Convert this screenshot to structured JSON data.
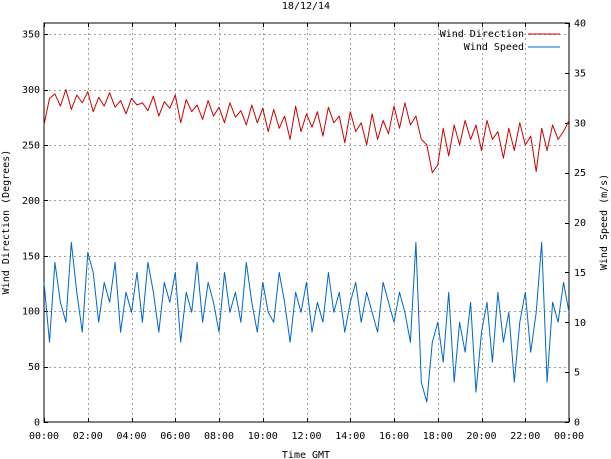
{
  "chart_data": {
    "type": "line",
    "title": "18/12/14",
    "xlabel": "Time GMT",
    "ylabel_left": "Wind Direction (Degrees)",
    "ylabel_right": "Wind Speed (m/s)",
    "x_tick_labels": [
      "00:00",
      "02:00",
      "04:00",
      "06:00",
      "08:00",
      "10:00",
      "12:00",
      "14:00",
      "16:00",
      "18:00",
      "20:00",
      "22:00",
      "00:00"
    ],
    "x_range_hours": [
      0,
      24
    ],
    "ylim_left": [
      0,
      360
    ],
    "yticks_left": [
      "0",
      "50",
      "100",
      "150",
      "200",
      "250",
      "300",
      "350"
    ],
    "ylim_right": [
      0,
      40
    ],
    "yticks_right": [
      "0",
      "5",
      "10",
      "15",
      "20",
      "25",
      "30",
      "35",
      "40"
    ],
    "grid": true,
    "legend_position": "top-right",
    "series": [
      {
        "name": "Wind Direction",
        "axis": "left",
        "color": "#cc0000",
        "x_hours": [
          0.0,
          0.25,
          0.5,
          0.75,
          1.0,
          1.25,
          1.5,
          1.75,
          2.0,
          2.25,
          2.5,
          2.75,
          3.0,
          3.25,
          3.5,
          3.75,
          4.0,
          4.25,
          4.5,
          4.75,
          5.0,
          5.25,
          5.5,
          5.75,
          6.0,
          6.25,
          6.5,
          6.75,
          7.0,
          7.25,
          7.5,
          7.75,
          8.0,
          8.25,
          8.5,
          8.75,
          9.0,
          9.25,
          9.5,
          9.75,
          10.0,
          10.25,
          10.5,
          10.75,
          11.0,
          11.25,
          11.5,
          11.75,
          12.0,
          12.25,
          12.5,
          12.75,
          13.0,
          13.25,
          13.5,
          13.75,
          14.0,
          14.25,
          14.5,
          14.75,
          15.0,
          15.25,
          15.5,
          15.75,
          16.0,
          16.25,
          16.5,
          16.75,
          17.0,
          17.25,
          17.5,
          17.75,
          18.0,
          18.25,
          18.5,
          18.75,
          19.0,
          19.25,
          19.5,
          19.75,
          20.0,
          20.25,
          20.5,
          20.75,
          21.0,
          21.25,
          21.5,
          21.75,
          22.0,
          22.25,
          22.5,
          22.75,
          23.0,
          23.25,
          23.5,
          23.75,
          24.0
        ],
        "values": [
          268,
          292,
          296,
          285,
          300,
          282,
          295,
          288,
          298,
          280,
          293,
          285,
          297,
          284,
          290,
          278,
          292,
          286,
          288,
          281,
          294,
          276,
          289,
          283,
          295,
          270,
          291,
          280,
          286,
          273,
          290,
          276,
          284,
          270,
          288,
          275,
          281,
          268,
          286,
          270,
          283,
          262,
          282,
          265,
          276,
          255,
          285,
          262,
          278,
          266,
          280,
          258,
          284,
          270,
          276,
          252,
          280,
          262,
          270,
          250,
          278,
          255,
          272,
          260,
          285,
          265,
          288,
          268,
          276,
          255,
          250,
          225,
          232,
          265,
          240,
          268,
          250,
          272,
          255,
          268,
          245,
          272,
          255,
          262,
          238,
          265,
          245,
          270,
          250,
          258,
          226,
          265,
          245,
          268,
          255,
          262,
          272
        ]
      },
      {
        "name": "Wind Speed",
        "axis": "right",
        "color": "#0066cc",
        "x_hours": [
          0.0,
          0.25,
          0.5,
          0.75,
          1.0,
          1.25,
          1.5,
          1.75,
          2.0,
          2.25,
          2.5,
          2.75,
          3.0,
          3.25,
          3.5,
          3.75,
          4.0,
          4.25,
          4.5,
          4.75,
          5.0,
          5.25,
          5.5,
          5.75,
          6.0,
          6.25,
          6.5,
          6.75,
          7.0,
          7.25,
          7.5,
          7.75,
          8.0,
          8.25,
          8.5,
          8.75,
          9.0,
          9.25,
          9.5,
          9.75,
          10.0,
          10.25,
          10.5,
          10.75,
          11.0,
          11.25,
          11.5,
          11.75,
          12.0,
          12.25,
          12.5,
          12.75,
          13.0,
          13.25,
          13.5,
          13.75,
          14.0,
          14.25,
          14.5,
          14.75,
          15.0,
          15.25,
          15.5,
          15.75,
          16.0,
          16.25,
          16.5,
          16.75,
          17.0,
          17.25,
          17.5,
          17.75,
          18.0,
          18.25,
          18.5,
          18.75,
          19.0,
          19.25,
          19.5,
          19.75,
          20.0,
          20.25,
          20.5,
          20.75,
          21.0,
          21.25,
          21.5,
          21.75,
          22.0,
          22.25,
          22.5,
          22.75,
          23.0,
          23.25,
          23.5,
          23.75,
          24.0
        ],
        "values": [
          14,
          8,
          16,
          12,
          10,
          18,
          13,
          9,
          17,
          15,
          10,
          14,
          12,
          16,
          9,
          13,
          11,
          15,
          10,
          16,
          13,
          9,
          14,
          12,
          15,
          8,
          13,
          11,
          16,
          10,
          14,
          12,
          9,
          15,
          11,
          13,
          10,
          16,
          12,
          9,
          14,
          11,
          10,
          15,
          12,
          8,
          13,
          11,
          14,
          9,
          12,
          10,
          15,
          11,
          13,
          9,
          12,
          14,
          10,
          13,
          11,
          9,
          14,
          12,
          10,
          13,
          11,
          8,
          18,
          4,
          2,
          8,
          10,
          6,
          13,
          4,
          10,
          7,
          12,
          3,
          9,
          12,
          6,
          13,
          8,
          11,
          4,
          10,
          13,
          7,
          11,
          18,
          4,
          12,
          10,
          14,
          11
        ]
      }
    ]
  }
}
